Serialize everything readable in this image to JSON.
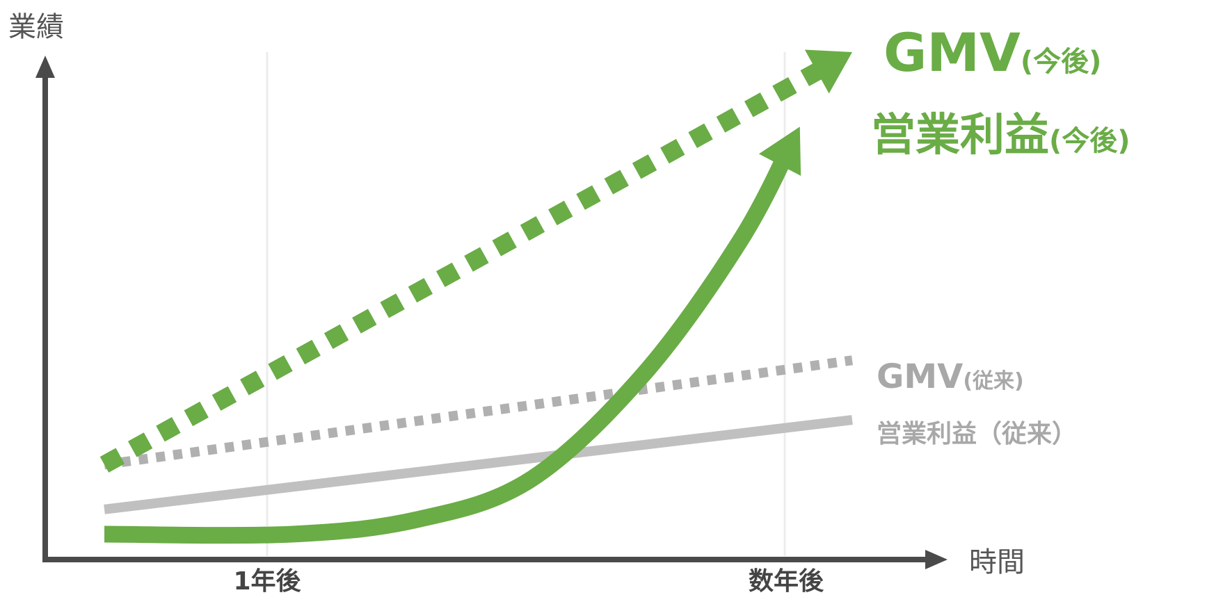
{
  "chart_data": {
    "type": "line",
    "xlabel": "時間",
    "ylabel": "業績",
    "x_ticks": [
      "1年後",
      "数年後"
    ],
    "grid": "vertical at ticks",
    "series": [
      {
        "name_main": "GMV",
        "name_sub": "(今後)",
        "style": "dotted",
        "arrow": true,
        "color": "#6aac46",
        "points": [
          [
            0.0,
            0.17
          ],
          [
            1.0,
            1.0
          ]
        ]
      },
      {
        "name_main": "営業利益",
        "name_sub": "(今後)",
        "style": "solid",
        "arrow": true,
        "color": "#6aac46",
        "points": [
          [
            0.0,
            0.03
          ],
          [
            0.25,
            0.03
          ],
          [
            0.42,
            0.06
          ],
          [
            0.57,
            0.14
          ],
          [
            0.72,
            0.35
          ],
          [
            0.85,
            0.62
          ],
          [
            0.93,
            0.85
          ]
        ]
      },
      {
        "name_main": "GMV",
        "name_sub": "(従来)",
        "style": "dotted",
        "arrow": false,
        "color": "#b0b0b0",
        "points": [
          [
            0.0,
            0.17
          ],
          [
            1.0,
            0.38
          ]
        ]
      },
      {
        "name_main": "営業利益（従来）",
        "name_sub": "",
        "style": "solid",
        "arrow": false,
        "color": "#c0c0c0",
        "points": [
          [
            0.0,
            0.08
          ],
          [
            1.0,
            0.26
          ]
        ]
      }
    ]
  }
}
